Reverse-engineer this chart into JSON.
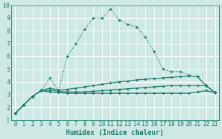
{
  "line1_x": [
    0,
    1,
    2,
    3,
    4,
    5,
    6,
    7,
    8,
    9,
    10,
    11,
    12,
    13,
    14,
    15,
    16,
    17,
    18,
    19,
    20,
    21,
    22,
    23
  ],
  "line1_y": [
    1.5,
    2.2,
    2.85,
    3.3,
    4.3,
    3.3,
    6.0,
    7.0,
    8.1,
    9.0,
    9.0,
    9.7,
    8.85,
    8.5,
    8.3,
    7.5,
    6.4,
    5.0,
    4.8,
    4.8,
    4.5,
    4.4,
    3.7,
    3.15
  ],
  "line2_x": [
    0,
    1,
    2,
    3,
    4,
    5,
    6,
    7,
    8,
    9,
    10,
    11,
    12,
    13,
    14,
    15,
    16,
    17,
    18,
    19,
    20,
    21,
    22,
    23
  ],
  "line2_y": [
    1.5,
    2.2,
    2.85,
    3.3,
    3.5,
    3.35,
    3.4,
    3.5,
    3.6,
    3.7,
    3.8,
    3.9,
    4.0,
    4.05,
    4.15,
    4.2,
    4.25,
    4.3,
    4.35,
    4.4,
    4.45,
    4.4,
    3.7,
    3.15
  ],
  "line3_x": [
    0,
    1,
    2,
    3,
    4,
    5,
    6,
    7,
    8,
    9,
    10,
    11,
    12,
    13,
    14,
    15,
    16,
    17,
    18,
    19,
    20,
    21,
    22,
    23
  ],
  "line3_y": [
    1.5,
    2.2,
    2.85,
    3.3,
    3.2,
    3.15,
    3.1,
    3.1,
    3.1,
    3.1,
    3.1,
    3.1,
    3.1,
    3.1,
    3.1,
    3.1,
    3.1,
    3.1,
    3.1,
    3.1,
    3.1,
    3.2,
    3.3,
    3.15
  ],
  "line4_x": [
    0,
    1,
    2,
    3,
    4,
    5,
    6,
    7,
    8,
    9,
    10,
    11,
    12,
    13,
    14,
    15,
    16,
    17,
    18,
    19,
    20,
    21,
    22,
    23
  ],
  "line4_y": [
    1.5,
    2.2,
    2.85,
    3.3,
    3.35,
    3.25,
    3.2,
    3.2,
    3.2,
    3.25,
    3.3,
    3.35,
    3.4,
    3.45,
    3.5,
    3.55,
    3.6,
    3.65,
    3.7,
    3.7,
    3.7,
    3.7,
    3.7,
    3.15
  ],
  "line_color": "#1a7a6e",
  "bg_color": "#cde8e5",
  "grid_color": "#b8d8d4",
  "xlabel": "Humidex (Indice chaleur)",
  "xlim": [
    -0.5,
    23.5
  ],
  "ylim": [
    1,
    10
  ],
  "xticks": [
    0,
    1,
    2,
    3,
    4,
    5,
    6,
    7,
    8,
    9,
    10,
    11,
    12,
    13,
    14,
    15,
    16,
    17,
    18,
    19,
    20,
    21,
    22,
    23
  ],
  "yticks": [
    1,
    2,
    3,
    4,
    5,
    6,
    7,
    8,
    9,
    10
  ],
  "markersize": 2.5,
  "linewidth": 0.9,
  "xlabel_fontsize": 7,
  "tick_fontsize": 6
}
